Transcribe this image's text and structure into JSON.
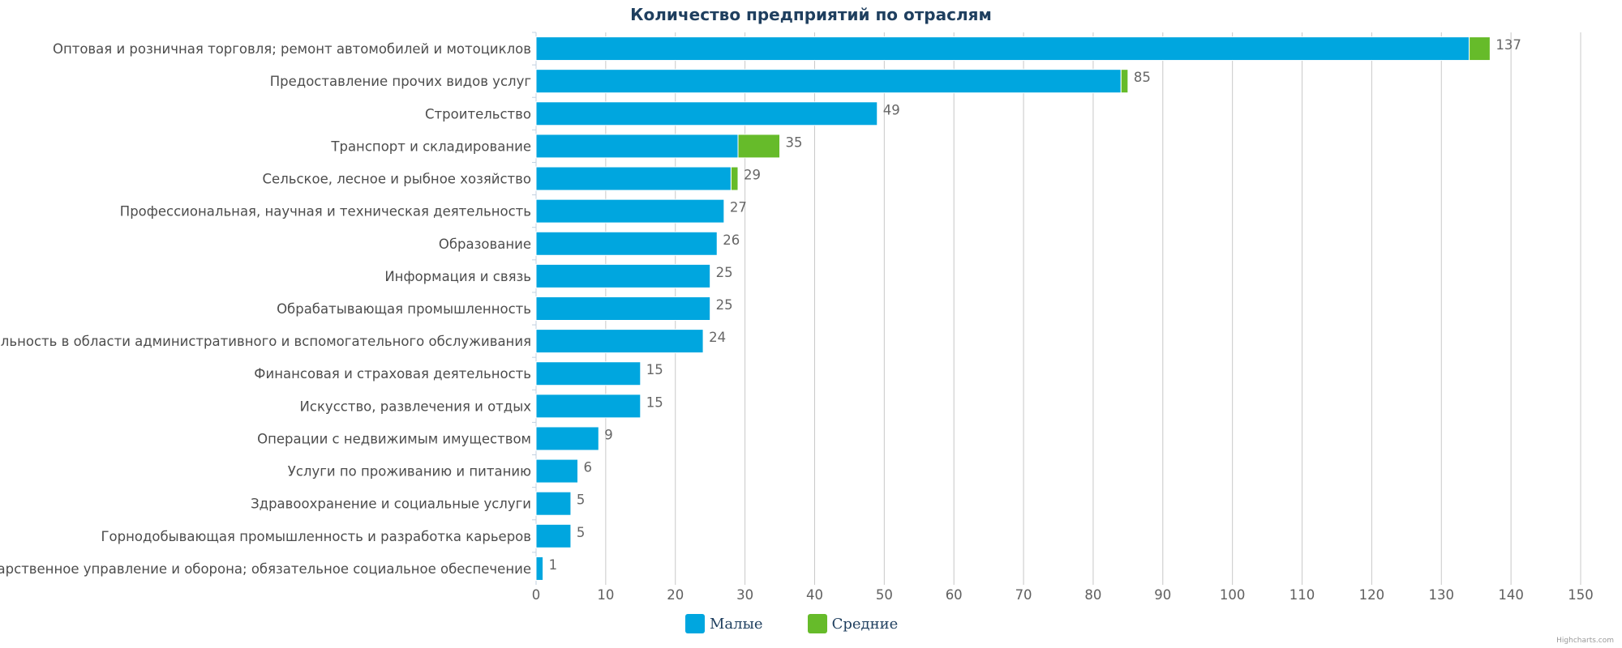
{
  "chart_data": {
    "type": "bar",
    "orientation": "horizontal",
    "stacked": true,
    "title": "Количество предприятий по отраслям",
    "categories": [
      "Оптовая и розничная торговля; ремонт автомобилей и мотоциклов",
      "Предоставление прочих видов услуг",
      "Строительство",
      "Транспорт и складирование",
      "Сельское, лесное и рыбное хозяйство",
      "Профессиональная, научная и техническая деятельность",
      "Образование",
      "Информация и связь",
      "Обрабатывающая промышленность",
      "Деятельность в области административного и вспомогательного обслуживания",
      "Финансовая и страховая деятельность",
      "Искусство, развлечения и отдых",
      "Операции с недвижимым имуществом",
      "Услуги по проживанию и питанию",
      "Здравоохранение и социальные услуги",
      "Горнодобывающая промышленность и разработка карьеров",
      "Государственное управление и оборона; обязательное социальное обеспечение"
    ],
    "series": [
      {
        "name": "Малые",
        "color": "#00a6df",
        "values": [
          134,
          84,
          49,
          29,
          28,
          27,
          26,
          25,
          25,
          24,
          15,
          15,
          9,
          6,
          5,
          5,
          1
        ]
      },
      {
        "name": "Средние",
        "color": "#66bb2a",
        "values": [
          3,
          1,
          0,
          6,
          1,
          0,
          0,
          0,
          0,
          0,
          0,
          0,
          0,
          0,
          0,
          0,
          0
        ]
      }
    ],
    "totals": [
      137,
      85,
      49,
      35,
      29,
      27,
      26,
      25,
      25,
      24,
      15,
      15,
      9,
      6,
      5,
      5,
      1
    ],
    "xlim": [
      0,
      150
    ],
    "xticks": [
      0,
      10,
      20,
      30,
      40,
      50,
      60,
      70,
      80,
      90,
      100,
      110,
      120,
      130,
      140,
      150
    ],
    "grid": true,
    "legend_position": "bottom-center"
  },
  "credit": "Highcharts.com"
}
